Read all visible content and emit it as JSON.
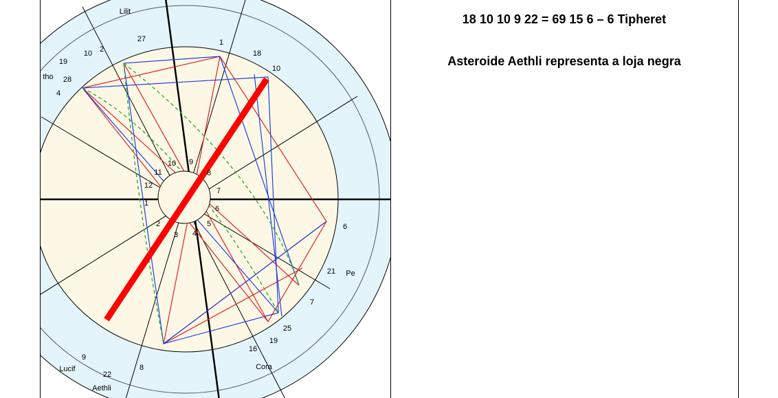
{
  "table": {
    "rows": [
      [
        "18 10 10 9 22 = 69 15 6 – 6 Tipheret",
        "Asteroide Aethli representa a loja negra"
      ]
    ]
  },
  "wheel": {
    "labels": [
      "10",
      "9",
      "8",
      "7",
      "6",
      "5",
      "4",
      "3",
      "2",
      "1",
      "12",
      "11",
      "28",
      "4",
      "tho",
      "19",
      "10",
      "2",
      "27",
      "Lilit",
      "1",
      "18",
      "10",
      "6",
      "21",
      "Pe",
      "7",
      "25",
      "19",
      "16",
      "Cora",
      "8",
      "22",
      "Lucif",
      "Aethli",
      "9"
    ]
  }
}
